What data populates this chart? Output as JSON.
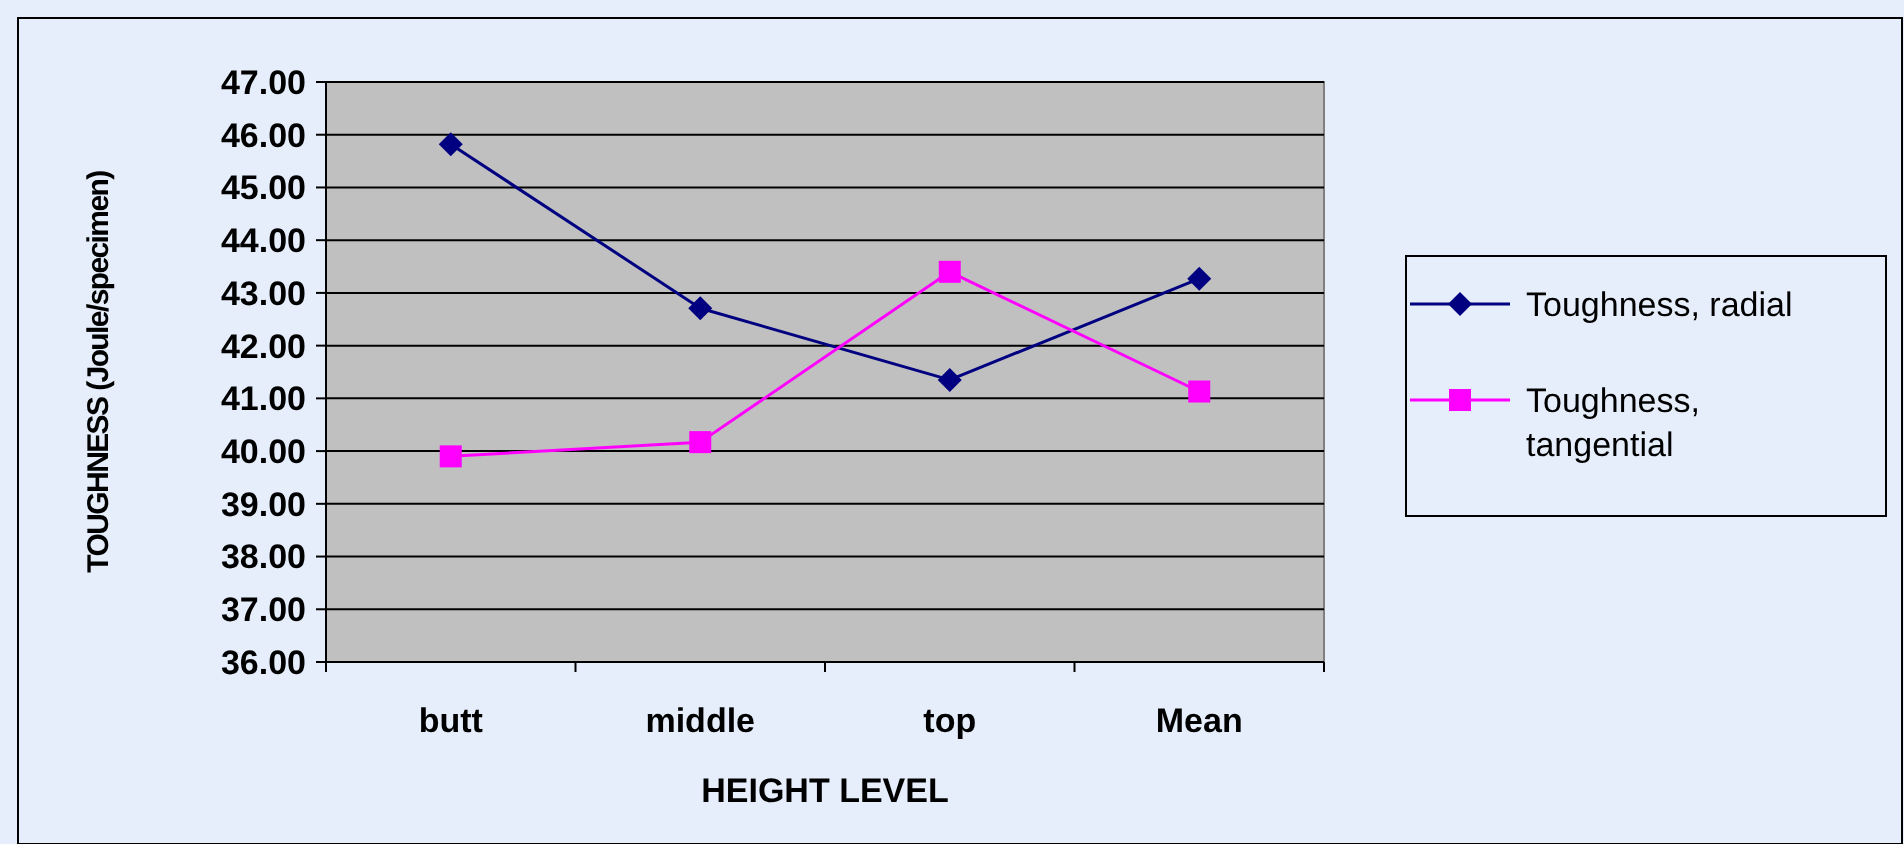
{
  "chart_data": {
    "type": "line",
    "xlabel": "HEIGHT LEVEL",
    "ylabel": "TOUGHNESS (Joule/specimen)",
    "categories": [
      "butt",
      "middle",
      "top",
      "Mean"
    ],
    "series": [
      {
        "name": "Toughness, radial",
        "color": "#000080",
        "marker": "diamond",
        "values": [
          45.82,
          42.71,
          41.35,
          43.27
        ]
      },
      {
        "name": "Toughness, tangential",
        "color": "#ff00ff",
        "marker": "square",
        "values": [
          39.9,
          40.17,
          43.4,
          41.13
        ]
      }
    ],
    "ylim": [
      36,
      47
    ],
    "yticks": [
      {
        "value": 36,
        "label": "36.00"
      },
      {
        "value": 37,
        "label": "37.00"
      },
      {
        "value": 38,
        "label": "38.00"
      },
      {
        "value": 39,
        "label": "39.00"
      },
      {
        "value": 40,
        "label": "40.00"
      },
      {
        "value": 41,
        "label": "41.00"
      },
      {
        "value": 42,
        "label": "42.00"
      },
      {
        "value": 43,
        "label": "43.00"
      },
      {
        "value": 44,
        "label": "44.00"
      },
      {
        "value": 45,
        "label": "45.00"
      },
      {
        "value": 46,
        "label": "46.00"
      },
      {
        "value": 47,
        "label": "47.00"
      }
    ],
    "grid": "y",
    "legend": "right"
  }
}
